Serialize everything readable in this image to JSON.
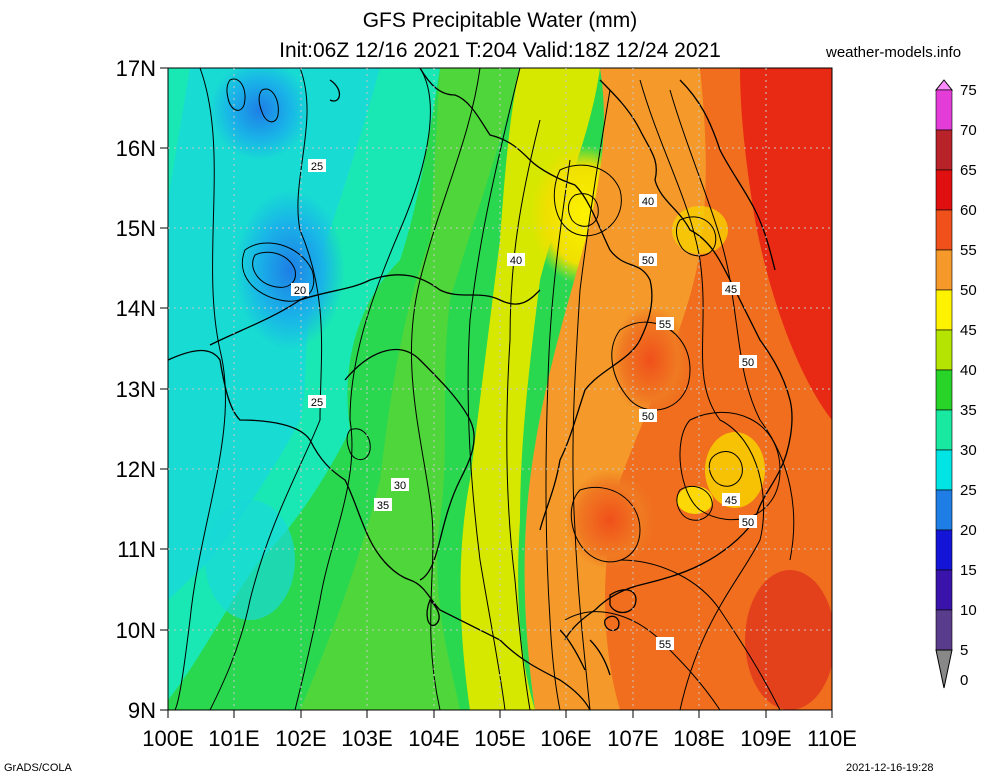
{
  "header": {
    "title": "GFS Precipitable Water (mm)",
    "subtitle": "Init:06Z 12/16 2021 T:204 Valid:18Z 12/24 2021",
    "site": "weather-models.info"
  },
  "axes": {
    "lat_labels": [
      "17N",
      "16N",
      "15N",
      "14N",
      "13N",
      "12N",
      "11N",
      "10N",
      "9N"
    ],
    "lon_labels": [
      "100E",
      "101E",
      "102E",
      "103E",
      "104E",
      "105E",
      "106E",
      "107E",
      "108E",
      "109E",
      "110E"
    ]
  },
  "colorbar": {
    "labels": [
      "75",
      "70",
      "65",
      "60",
      "55",
      "50",
      "45",
      "40",
      "35",
      "30",
      "25",
      "20",
      "15",
      "10",
      "5",
      "0"
    ],
    "colors": [
      "#ff8cff",
      "#e43cd8",
      "#b8232a",
      "#e01010",
      "#f0501a",
      "#f59a2a",
      "#fff200",
      "#b4e400",
      "#28d428",
      "#19e8a0",
      "#00e4e4",
      "#1e7ee6",
      "#1414d6",
      "#3a14aa",
      "#5a3c8c",
      "#888888"
    ]
  },
  "contour_labels": [
    {
      "text": "25"
    },
    {
      "text": "20"
    },
    {
      "text": "25"
    },
    {
      "text": "30"
    },
    {
      "text": "35"
    },
    {
      "text": "40"
    },
    {
      "text": "40"
    },
    {
      "text": "50"
    },
    {
      "text": "45"
    },
    {
      "text": "55"
    },
    {
      "text": "50"
    },
    {
      "text": "50"
    },
    {
      "text": "45"
    },
    {
      "text": "50"
    },
    {
      "text": "55"
    }
  ],
  "footer": {
    "left": "GrADS/COLA",
    "right": "2021-12-16-19:28"
  }
}
